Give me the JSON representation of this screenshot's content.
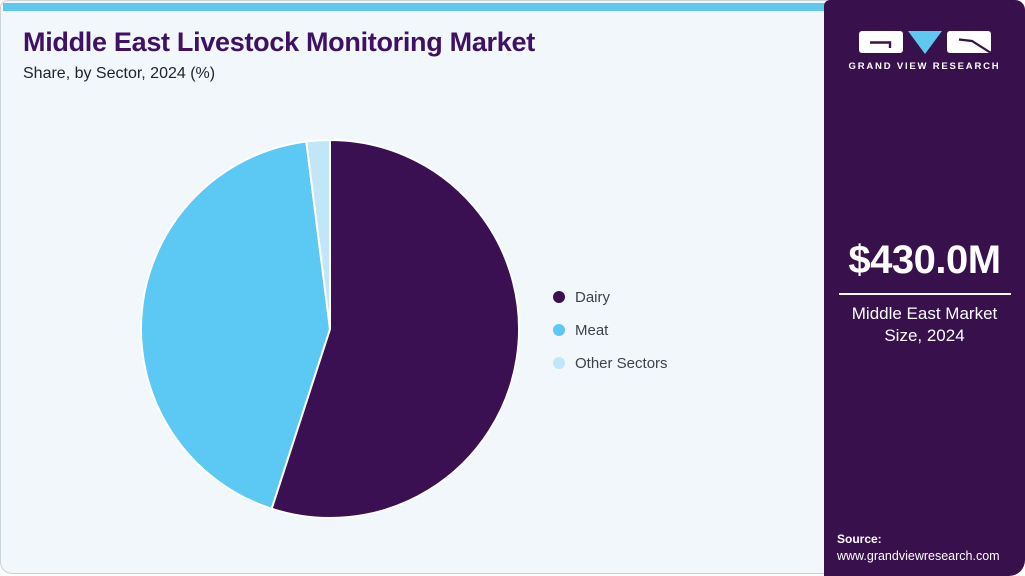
{
  "header": {
    "title": "Middle East Livestock Monitoring Market",
    "subtitle": "Share, by Sector, 2024 (%)"
  },
  "chart_data": {
    "type": "pie",
    "title": "Middle East Livestock Monitoring Market Share, by Sector, 2024 (%)",
    "labels": [
      "Dairy",
      "Meat",
      "Other Sectors"
    ],
    "values": [
      55,
      43,
      2
    ],
    "colors": [
      "#3a1053",
      "#5bc9f3",
      "#c0e6f8"
    ],
    "start_angle_deg": 0,
    "direction": "clockwise",
    "legend_position": "right",
    "slice_stroke": "#ffffff"
  },
  "sidebar": {
    "brand": "GRAND VIEW RESEARCH",
    "stat": {
      "value": "$430.0M",
      "caption": "Middle East Market Size, 2024"
    },
    "source_label": "Source:",
    "source_url": "www.grandviewresearch.com"
  },
  "theme": {
    "topbar": "#5ec8ef",
    "panel_bg": "#f1f7fa",
    "sidebar_bg": "#38104c",
    "title_color": "#3e1162"
  }
}
